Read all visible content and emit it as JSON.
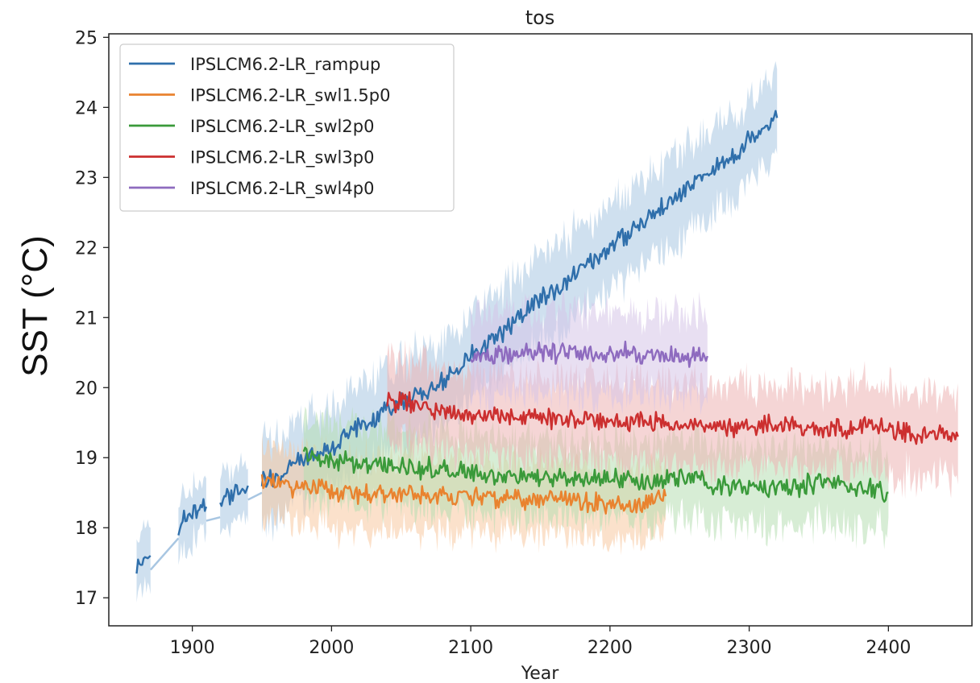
{
  "chart_data": {
    "type": "line",
    "title": "tos",
    "xlabel": "Year",
    "ylabel": "SST (°C)",
    "xlim": [
      1840,
      2460
    ],
    "ylim": [
      16.6,
      25.05
    ],
    "xticks": [
      1900,
      2000,
      2100,
      2200,
      2300,
      2400
    ],
    "yticks": [
      17,
      18,
      19,
      20,
      21,
      22,
      23,
      24,
      25
    ],
    "legend_position": "top-left",
    "shaded_spread": true,
    "series": [
      {
        "name": "IPSLCM6.2-LR_rampup",
        "color": "#2f6fab",
        "band_color": "#a8c6e2",
        "segments": [
          {
            "x": [
              1860,
              1865,
              1870
            ],
            "y": [
              17.45,
              17.5,
              17.6
            ],
            "spread": 0.4
          },
          {
            "x": [
              1890,
              1900,
              1910
            ],
            "y": [
              18.05,
              18.2,
              18.3
            ],
            "spread": 0.4
          },
          {
            "x": [
              1920,
              1930,
              1940
            ],
            "y": [
              18.35,
              18.5,
              18.6
            ],
            "spread": 0.4
          },
          {
            "x": [
              1950,
              1960,
              1970,
              1980,
              1990,
              2000,
              2010,
              2020,
              2030,
              2040,
              2050,
              2060,
              2070,
              2080,
              2090,
              2100,
              2110,
              2120,
              2130,
              2140,
              2150,
              2160,
              2170,
              2180,
              2190,
              2200,
              2210,
              2220,
              2230,
              2240,
              2250,
              2260,
              2270,
              2280,
              2290,
              2300,
              2310,
              2320
            ],
            "y": [
              18.7,
              18.7,
              18.85,
              19.0,
              19.05,
              19.15,
              19.3,
              19.45,
              19.55,
              19.7,
              19.8,
              19.85,
              19.95,
              20.1,
              20.25,
              20.45,
              20.6,
              20.75,
              20.9,
              21.1,
              21.25,
              21.4,
              21.55,
              21.7,
              21.85,
              22.0,
              22.15,
              22.3,
              22.45,
              22.6,
              22.75,
              22.9,
              23.05,
              23.2,
              23.35,
              23.55,
              23.75,
              23.85
            ],
            "spread": 0.6
          }
        ]
      },
      {
        "name": "IPSLCM6.2-LR_swl1.5p0",
        "color": "#e9832f",
        "band_color": "#f8c9a1",
        "segments": [
          {
            "x": [
              1950,
              1960,
              1970,
              1980,
              1990,
              2000,
              2010,
              2020,
              2030,
              2040,
              2050,
              2060,
              2070,
              2080,
              2090,
              2100,
              2110,
              2120,
              2130,
              2140,
              2150,
              2160,
              2170,
              2180,
              2190,
              2200,
              2210,
              2220,
              2230,
              2240
            ],
            "y": [
              18.7,
              18.6,
              18.6,
              18.55,
              18.55,
              18.5,
              18.5,
              18.5,
              18.45,
              18.5,
              18.45,
              18.45,
              18.45,
              18.45,
              18.45,
              18.45,
              18.4,
              18.4,
              18.45,
              18.4,
              18.4,
              18.4,
              18.4,
              18.35,
              18.35,
              18.35,
              18.3,
              18.3,
              18.4,
              18.45
            ],
            "spread": 0.5
          }
        ]
      },
      {
        "name": "IPSLCM6.2-LR_swl2p0",
        "color": "#3a9a3a",
        "band_color": "#b7dfb2",
        "segments": [
          {
            "x": [
              1980,
              1990,
              2000,
              2010,
              2020,
              2030,
              2040,
              2050,
              2060,
              2070,
              2080,
              2090,
              2100,
              2110,
              2120,
              2130,
              2140,
              2150,
              2160,
              2170,
              2180,
              2190,
              2200,
              2210,
              2220,
              2230,
              2240,
              2250,
              2260,
              2270,
              2280,
              2290,
              2300,
              2310,
              2320,
              2330,
              2340,
              2350,
              2360,
              2370,
              2380,
              2390,
              2400
            ],
            "y": [
              19.05,
              19.0,
              18.95,
              18.95,
              18.9,
              18.9,
              18.9,
              18.9,
              18.85,
              18.85,
              18.8,
              18.8,
              18.8,
              18.75,
              18.75,
              18.75,
              18.75,
              18.7,
              18.7,
              18.7,
              18.7,
              18.7,
              18.7,
              18.7,
              18.65,
              18.65,
              18.7,
              18.75,
              18.7,
              18.65,
              18.6,
              18.6,
              18.6,
              18.6,
              18.6,
              18.6,
              18.6,
              18.65,
              18.65,
              18.6,
              18.6,
              18.55,
              18.5
            ],
            "spread": 0.55
          }
        ]
      },
      {
        "name": "IPSLCM6.2-LR_swl3p0",
        "color": "#cc2f2f",
        "band_color": "#ecb3b3",
        "segments": [
          {
            "x": [
              2040,
              2050,
              2060,
              2070,
              2080,
              2090,
              2100,
              2110,
              2120,
              2130,
              2140,
              2150,
              2160,
              2170,
              2180,
              2190,
              2200,
              2210,
              2220,
              2230,
              2240,
              2250,
              2260,
              2270,
              2280,
              2290,
              2300,
              2310,
              2320,
              2330,
              2340,
              2350,
              2360,
              2370,
              2380,
              2390,
              2400,
              2410,
              2420,
              2430,
              2440,
              2450
            ],
            "y": [
              19.75,
              19.85,
              19.75,
              19.7,
              19.65,
              19.65,
              19.6,
              19.6,
              19.6,
              19.6,
              19.6,
              19.55,
              19.55,
              19.55,
              19.55,
              19.55,
              19.5,
              19.5,
              19.5,
              19.5,
              19.5,
              19.45,
              19.45,
              19.45,
              19.45,
              19.45,
              19.45,
              19.45,
              19.45,
              19.45,
              19.4,
              19.4,
              19.4,
              19.4,
              19.45,
              19.45,
              19.4,
              19.35,
              19.3,
              19.35,
              19.35,
              19.3
            ],
            "spread": 0.6
          }
        ]
      },
      {
        "name": "IPSLCM6.2-LR_swl4p0",
        "color": "#8e6bbf",
        "band_color": "#d5c5e8",
        "segments": [
          {
            "x": [
              2100,
              2110,
              2120,
              2130,
              2140,
              2150,
              2160,
              2170,
              2180,
              2190,
              2200,
              2210,
              2220,
              2230,
              2240,
              2250,
              2260,
              2270
            ],
            "y": [
              20.45,
              20.45,
              20.5,
              20.45,
              20.5,
              20.5,
              20.5,
              20.5,
              20.5,
              20.5,
              20.5,
              20.5,
              20.45,
              20.45,
              20.45,
              20.45,
              20.45,
              20.45
            ],
            "spread": 0.6
          }
        ]
      }
    ]
  }
}
